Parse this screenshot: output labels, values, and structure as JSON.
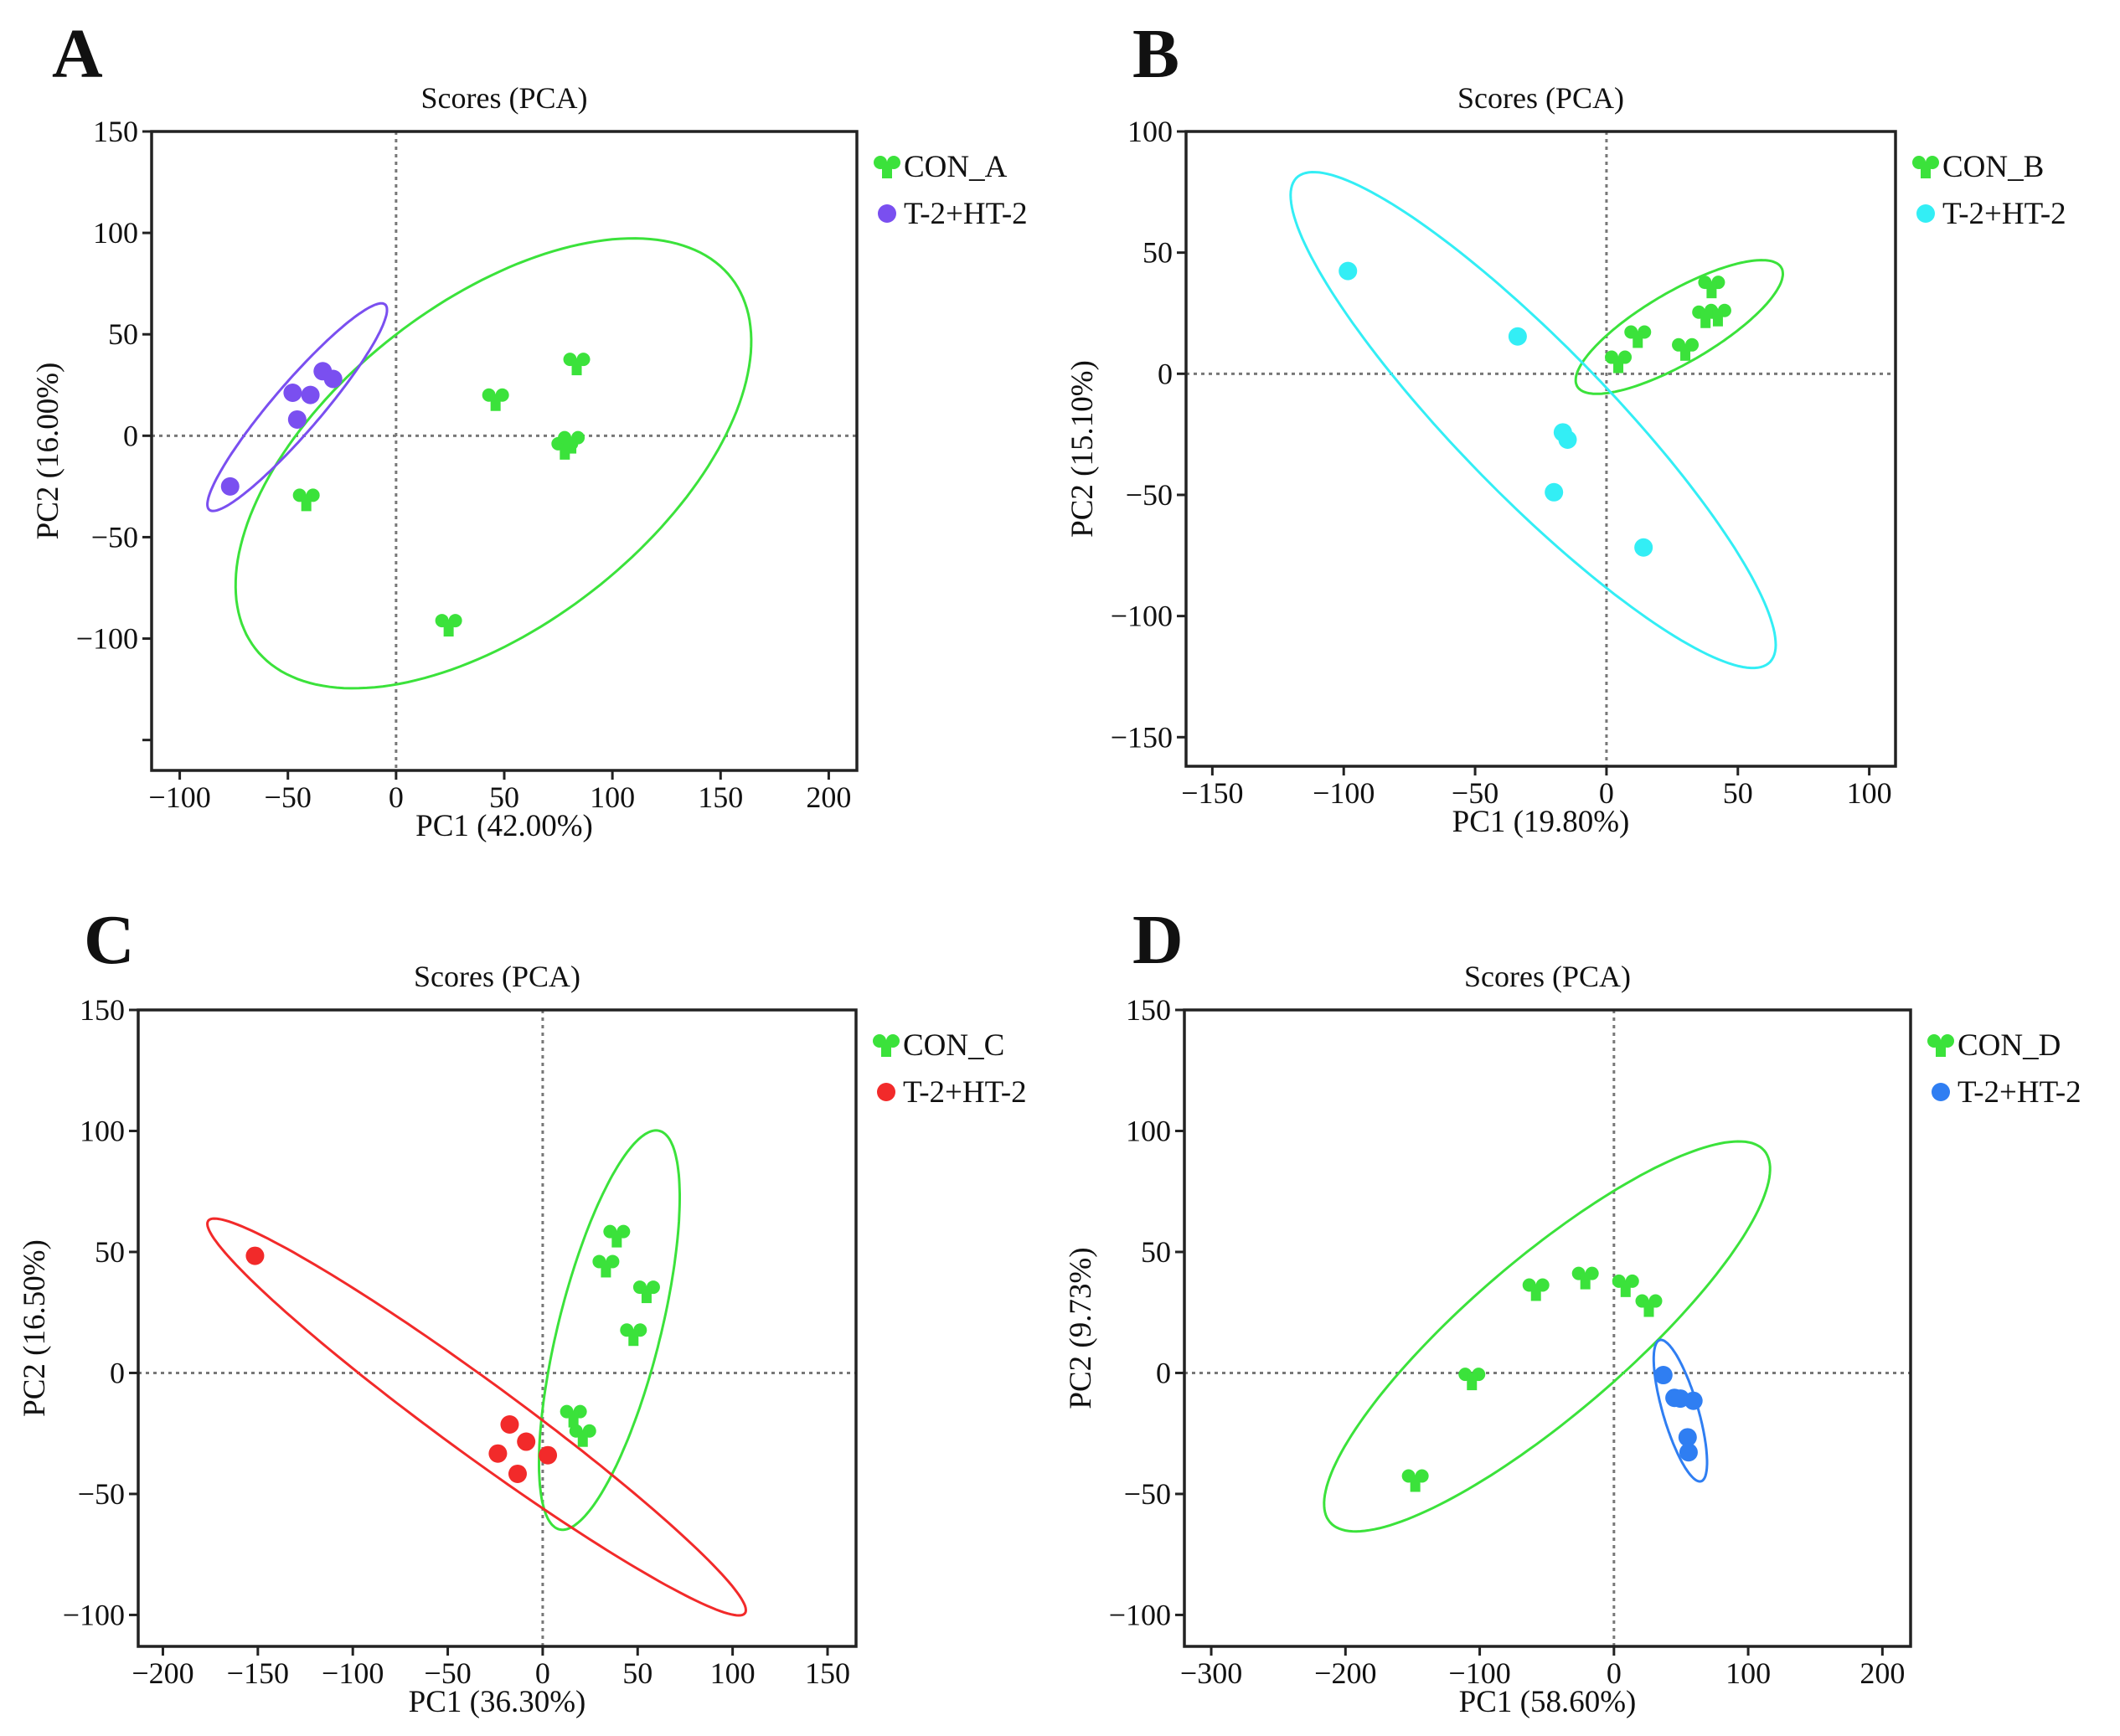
{
  "chart_data": [
    {
      "type": "scatter",
      "panel": "A",
      "title": "Scores (PCA)",
      "xlabel": "PC1 (42.00%)",
      "ylabel": "PC2 (16.00%)",
      "xlim": [
        -113,
        213
      ],
      "ylim": [
        -165,
        150
      ],
      "xticks": [
        -100,
        -50,
        0,
        50,
        100,
        150,
        200
      ],
      "yticks": [
        150,
        100,
        50,
        0,
        -50,
        -100
      ],
      "yticks_unlabeled": [
        -150
      ],
      "grid": false,
      "legend_position": "right",
      "series": [
        {
          "name": "CON_A",
          "marker": "trefoil",
          "color": "#3be23b",
          "points": [
            [
              83.5,
              35.6
            ],
            [
              46,
              18
            ],
            [
              78,
              -6
            ],
            [
              81,
              -3
            ],
            [
              -41.5,
              -31.4
            ],
            [
              24.3,
              -93.2
            ]
          ],
          "ellipse": {
            "center": [
              45,
              -13.6
            ],
            "u": [
              106.6,
              95.5
            ],
            "v": [
              -53.3,
              56.4
            ]
          }
        },
        {
          "name": "T-2+HT-2",
          "marker": "circle",
          "color": "#7a4ff0",
          "points": [
            [
              -76.7,
              -25
            ],
            [
              -47.8,
              21.2
            ],
            [
              -39.6,
              20.1
            ],
            [
              -45.7,
              8
            ],
            [
              -33.9,
              31.8
            ],
            [
              -29.1,
              28
            ]
          ],
          "ellipse": {
            "center": [
              -45.7,
              14.1
            ],
            "u": [
              40.5,
              50.7
            ],
            "v": [
              -9.1,
              6.9
            ]
          }
        }
      ]
    },
    {
      "type": "scatter",
      "panel": "B",
      "title": "Scores (PCA)",
      "xlabel": "PC1 (19.80%)",
      "ylabel": "PC2 (15.10%)",
      "xlim": [
        -160,
        110
      ],
      "ylim": [
        -162,
        100
      ],
      "xticks": [
        -150,
        -100,
        -50,
        0,
        50,
        100
      ],
      "yticks": [
        100,
        50,
        0,
        -50,
        -100,
        -150
      ],
      "yticks_unlabeled": [],
      "grid": false,
      "legend_position": "right",
      "series": [
        {
          "name": "CON_B",
          "marker": "trefoil",
          "color": "#3be23b",
          "points": [
            [
              40,
              36
            ],
            [
              37.7,
              23.7
            ],
            [
              42.4,
              24.4
            ],
            [
              11.9,
              15.5
            ],
            [
              30,
              10.2
            ],
            [
              4.5,
              5.1
            ]
          ],
          "ellipse": {
            "center": [
              27.7,
              19.3
            ],
            "u": [
              38.6,
              24.9
            ],
            "v": [
              -8.0,
              11.9
            ]
          }
        },
        {
          "name": "T-2+HT-2",
          "marker": "circle",
          "color": "#33eef5",
          "points": [
            [
              -98.4,
              42.4
            ],
            [
              -33.8,
              15.4
            ],
            [
              -16.6,
              -24.2
            ],
            [
              -14.8,
              -27.2
            ],
            [
              -20,
              -48.9
            ],
            [
              14.1,
              -71.7
            ]
          ],
          "ellipse": {
            "center": [
              -27.9,
              -19.1
            ],
            "u": [
              89.5,
              -100.5
            ],
            "v": [
              22.6,
              19.3
            ]
          }
        }
      ]
    },
    {
      "type": "scatter",
      "panel": "C",
      "title": "Scores (PCA)",
      "xlabel": "PC1 (36.30%)",
      "ylabel": "PC2 (16.50%)",
      "xlim": [
        -213,
        165
      ],
      "ylim": [
        -113,
        150
      ],
      "xticks": [
        -200,
        -150,
        -100,
        -50,
        0,
        50,
        100,
        150
      ],
      "yticks": [
        150,
        100,
        50,
        0,
        -50,
        -100
      ],
      "yticks_unlabeled": [],
      "grid": false,
      "legend_position": "right",
      "series": [
        {
          "name": "CON_C",
          "marker": "trefoil",
          "color": "#3be23b",
          "points": [
            [
              39,
              56.7
            ],
            [
              33.3,
              44.3
            ],
            [
              54.7,
              33.7
            ],
            [
              47.8,
              16
            ],
            [
              16.2,
              -17.7
            ],
            [
              21.1,
              -25.7
            ]
          ],
          "ellipse": {
            "center": [
              35.1,
              17.7
            ],
            "u": [
              26.0,
              82.4
            ],
            "v": [
              -26.4,
              4.2
            ]
          }
        },
        {
          "name": "T-2+HT-2",
          "marker": "circle",
          "color": "#f22a2a",
          "points": [
            [
              -151.5,
              48.4
            ],
            [
              -17.4,
              -21.3
            ],
            [
              -8.7,
              -28.4
            ],
            [
              -23.6,
              -33.3
            ],
            [
              -13.2,
              -41.7
            ],
            [
              2.7,
              -34
            ]
          ],
          "ellipse": {
            "center": [
              -34.8,
              -18.2
            ],
            "u": [
              141.2,
              -81.2
            ],
            "v": [
              12.9,
              11.4
            ]
          }
        }
      ]
    },
    {
      "type": "scatter",
      "panel": "D",
      "title": "Scores (PCA)",
      "xlabel": "PC1 (58.60%)",
      "ylabel": "PC2 (9.73%)",
      "xlim": [
        -320,
        221
      ],
      "ylim": [
        -113,
        150
      ],
      "xticks": [
        -300,
        -200,
        -100,
        0,
        100,
        200
      ],
      "yticks": [
        150,
        100,
        50,
        0,
        -50,
        -100
      ],
      "yticks_unlabeled": [],
      "grid": false,
      "legend_position": "right",
      "series": [
        {
          "name": "CON_D",
          "marker": "trefoil",
          "color": "#3be23b",
          "points": [
            [
              -58.1,
              34.6
            ],
            [
              -21.3,
              39.4
            ],
            [
              8.7,
              36.2
            ],
            [
              26,
              28
            ],
            [
              -105.8,
              -2.3
            ],
            [
              -148,
              -44.3
            ]
          ],
          "ellipse": {
            "center": [
              -49.8,
              15.1
            ],
            "u": [
              160.3,
              77.6
            ],
            "v": [
              -43.6,
              21.7
            ]
          }
        },
        {
          "name": "T-2+HT-2",
          "marker": "circle",
          "color": "#2f7ef2",
          "points": [
            [
              36.8,
              -0.9
            ],
            [
              45.1,
              -10.3
            ],
            [
              49.5,
              -10.6
            ],
            [
              59.2,
              -11.5
            ],
            [
              54.9,
              -26.6
            ],
            [
              55.6,
              -32.8
            ]
          ],
          "ellipse": {
            "center": [
              49.5,
              -15.6
            ],
            "u": [
              15.2,
              -29.2
            ],
            "v": [
              12.8,
              1.6
            ]
          }
        }
      ]
    }
  ]
}
